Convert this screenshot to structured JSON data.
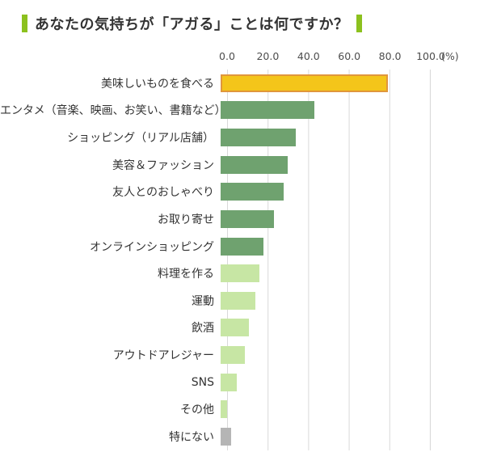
{
  "title": {
    "text": "あなたの気持ちが「アガる」ことは何ですか？"
  },
  "axis": {
    "tick_labels": [
      "0.0",
      "20.0",
      "40.0",
      "60.0",
      "80.0",
      "100.0"
    ],
    "unit_label": "(%)"
  },
  "colors": {
    "accent": "#8cc11e",
    "highlight_fill": "#f4c51a",
    "highlight_border": "#e0963c",
    "dark": "#6fa26f",
    "light": "#c7e6a4",
    "gray": "#b5b5b5",
    "gridline": "#d9d9d9",
    "text": "#333333"
  },
  "chart_data": {
    "type": "bar",
    "orientation": "horizontal",
    "title": "あなたの気持ちが「アガる」ことは何ですか？",
    "xlabel": "(%)",
    "xlim": [
      0,
      100
    ],
    "x_ticks": [
      0.0,
      20.0,
      40.0,
      60.0,
      80.0,
      100.0
    ],
    "grid": true,
    "legend": false,
    "categories": [
      "美味しいものを食べる",
      "エンタメ（音楽、映画、お笑い、書籍など）",
      "ショッピング（リアル店舗）",
      "美容＆ファッション",
      "友人とのおしゃべり",
      "お取り寄せ",
      "オンラインショッピング",
      "料理を作る",
      "運動",
      "飲酒",
      "アウトドアレジャー",
      "SNS",
      "その他",
      "特にない"
    ],
    "values": [
      82,
      46,
      37,
      33,
      31,
      26,
      21,
      19,
      17,
      14,
      12,
      8,
      3,
      5
    ],
    "bar_color_roles": [
      "highlight",
      "dark",
      "dark",
      "dark",
      "dark",
      "dark",
      "dark",
      "light",
      "light",
      "light",
      "light",
      "light",
      "light",
      "gray"
    ]
  }
}
